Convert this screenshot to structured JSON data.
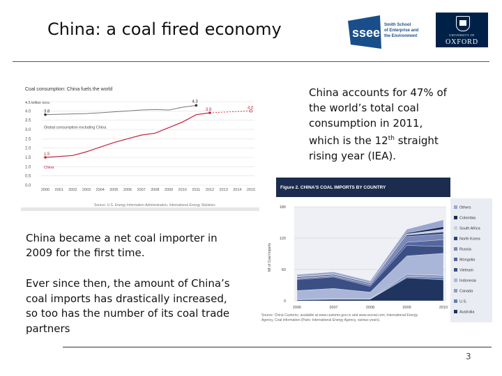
{
  "slide": {
    "title": "China: a coal fired economy",
    "page_number": "3",
    "logos": {
      "ssee_text": "ssee",
      "ssee_sub": [
        "Smith School",
        "of Enterprise and",
        "the Environment"
      ],
      "oxford_uni": "UNIVERSITY OF",
      "oxford": "OXFORD",
      "colors": {
        "ssee": "#1a4e8a",
        "oxford": "#002147"
      }
    },
    "text1": {
      "a": "China accounts for 47% of the world’s total coal consumption in 2011, which is the 12",
      "sup": "th",
      "b": " straight rising year (IEA)."
    },
    "text2": "China became a net coal importer in 2009 for the first time.",
    "text3": "Ever since then, the amount of China’s coal imports has drastically increased, so too has the number of its coal trade partners"
  },
  "chart_data": [
    {
      "type": "line",
      "title": "Coal consumption: China fuels the world",
      "unit_label": "4.5 billion tons",
      "x": [
        "2000",
        "2001",
        "2002",
        "2003",
        "2004",
        "2005",
        "2006",
        "2007",
        "2008",
        "2009",
        "2010",
        "2011",
        "2012",
        "2013",
        "2014",
        "2015"
      ],
      "ylim": [
        0,
        4.5
      ],
      "yticks": [
        "0.0",
        "0.5",
        "1.0",
        "1.5",
        "2.0",
        "2.5",
        "3.0",
        "3.5",
        "4.0",
        "4.5"
      ],
      "series": [
        {
          "name": "Global consumption excluding China",
          "color": "#777777",
          "values": [
            3.8,
            3.82,
            3.84,
            3.86,
            3.9,
            3.95,
            4.0,
            4.05,
            4.08,
            4.05,
            4.2,
            4.3,
            null,
            null,
            null,
            null
          ]
        },
        {
          "name": "China",
          "color": "#c0213a",
          "values": [
            1.5,
            1.55,
            1.6,
            1.8,
            2.05,
            2.3,
            2.5,
            2.7,
            2.8,
            3.1,
            3.4,
            3.8,
            3.9,
            null,
            null,
            4.0
          ]
        }
      ],
      "annotations": [
        "3.8",
        "4.3",
        "1.5",
        "3.9",
        "4.0"
      ],
      "source": "Source: U.S. Energy Information Administration, International Energy Statistics",
      "grid": true
    },
    {
      "type": "area",
      "title": "Figure 2. CHINA'S COAL IMPORTS BY COUNTRY",
      "ylabel": "Mt of Coal Imports",
      "x": [
        "2006",
        "2007",
        "2008",
        "2009",
        "2010"
      ],
      "ylim": [
        0,
        180
      ],
      "yticks": [
        "0",
        "60",
        "120",
        "180"
      ],
      "series": [
        {
          "name": "Australia",
          "color": "#1f3560",
          "values": [
            2,
            3,
            3,
            44,
            40
          ]
        },
        {
          "name": "U.S.",
          "color": "#6a7fb0",
          "values": [
            0.3,
            0.3,
            0.3,
            2,
            5
          ]
        },
        {
          "name": "Canada",
          "color": "#8d9cc6",
          "values": [
            0.3,
            0.3,
            0.3,
            5,
            4
          ]
        },
        {
          "name": "Indonesia",
          "color": "#aab6d8",
          "values": [
            17,
            20,
            13,
            35,
            42
          ]
        },
        {
          "name": "Vietnam",
          "color": "#3b4f85",
          "values": [
            21,
            22,
            11,
            20,
            13
          ]
        },
        {
          "name": "Mongolia",
          "color": "#5566a0",
          "values": [
            2,
            2,
            3,
            6,
            13
          ]
        },
        {
          "name": "Russia",
          "color": "#7987b8",
          "values": [
            1,
            1,
            1,
            11,
            11
          ]
        },
        {
          "name": "North Korea",
          "color": "#2d4475",
          "values": [
            2,
            2,
            2,
            3,
            4
          ]
        },
        {
          "name": "South Africa",
          "color": "#c7cfe6",
          "values": [
            0.5,
            0.5,
            0.3,
            2,
            5
          ]
        },
        {
          "name": "Colombia",
          "color": "#1c2b52",
          "values": [
            0.3,
            0.3,
            0.3,
            2,
            5
          ]
        },
        {
          "name": "Others",
          "color": "#9aa6cf",
          "values": [
            4,
            4,
            4,
            7,
            13
          ]
        }
      ],
      "legend_order": [
        "Others",
        "Colombia",
        "South Africa",
        "North Korea",
        "Russia",
        "Mongolia",
        "Vietnam",
        "Indonesia",
        "Canada",
        "U.S.",
        "Australia"
      ],
      "source_lines": [
        "Source: China Customs, available at www.customs.gov.cn and www.sxcoal.com; International Energy",
        "Agency, Coal information (Paris: International Energy Agency, various years)."
      ]
    }
  ]
}
